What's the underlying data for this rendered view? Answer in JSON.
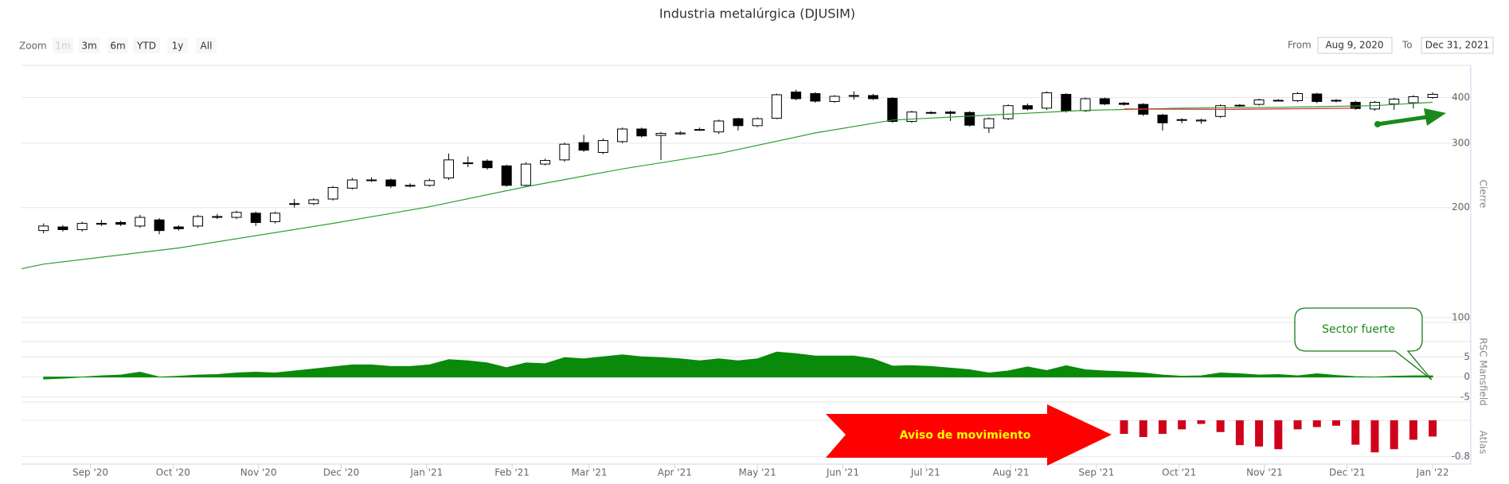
{
  "ui": {
    "zoom_label": "Zoom",
    "buttons": [
      "1m",
      "3m",
      "6m",
      "YTD",
      "1y",
      "All"
    ],
    "from_label": "From",
    "from": "Aug 9, 2020",
    "to_label": "To",
    "to": "Dec 31, 2021"
  },
  "chart_data": {
    "type": "candlestick",
    "title": "Industria metalúrgica (DJUSIM)",
    "y_label": "Cierre",
    "log_scale": true,
    "grid": true,
    "up_color": "#ffffff",
    "down_color": "#000000",
    "x": [
      "2020-08-15",
      "2020-08-22",
      "2020-08-29",
      "2020-09-05",
      "2020-09-12",
      "2020-09-19",
      "2020-09-26",
      "2020-10-03",
      "2020-10-10",
      "2020-10-17",
      "2020-10-24",
      "2020-10-31",
      "2020-11-07",
      "2020-11-14",
      "2020-11-21",
      "2020-11-28",
      "2020-12-05",
      "2020-12-12",
      "2020-12-19",
      "2020-12-26",
      "2021-01-02",
      "2021-01-09",
      "2021-01-16",
      "2021-01-23",
      "2021-01-30",
      "2021-02-06",
      "2021-02-13",
      "2021-02-20",
      "2021-02-27",
      "2021-03-06",
      "2021-03-13",
      "2021-03-20",
      "2021-03-27",
      "2021-04-03",
      "2021-04-10",
      "2021-04-17",
      "2021-04-24",
      "2021-05-01",
      "2021-05-08",
      "2021-05-15",
      "2021-05-22",
      "2021-05-29",
      "2021-06-05",
      "2021-06-12",
      "2021-06-19",
      "2021-06-26",
      "2021-07-03",
      "2021-07-10",
      "2021-07-17",
      "2021-07-24",
      "2021-07-31",
      "2021-08-07",
      "2021-08-14",
      "2021-08-21",
      "2021-08-28",
      "2021-09-04",
      "2021-09-11",
      "2021-09-18",
      "2021-09-25",
      "2021-10-02",
      "2021-10-09",
      "2021-10-16",
      "2021-10-23",
      "2021-10-30",
      "2021-11-06",
      "2021-11-13",
      "2021-11-20",
      "2021-11-27",
      "2021-12-04",
      "2021-12-11",
      "2021-12-18",
      "2021-12-25",
      "2022-01-01"
    ],
    "open": [
      173,
      177,
      174,
      180,
      182,
      178,
      185,
      177,
      178,
      188,
      188,
      193,
      183,
      204,
      205,
      211,
      226,
      237,
      238,
      230,
      230,
      241,
      264,
      268,
      260,
      230,
      263,
      270,
      301,
      283,
      303,
      328,
      315,
      318,
      326,
      322,
      350,
      335,
      351,
      414,
      410,
      390,
      404,
      405,
      398,
      344,
      363,
      365,
      364,
      330,
      350,
      380,
      374,
      408,
      368,
      397,
      386,
      383,
      358,
      347,
      345,
      355,
      380,
      383,
      392,
      392,
      409,
      392,
      388,
      372,
      384,
      387,
      400
    ],
    "high": [
      181,
      179,
      183,
      185,
      184,
      191,
      187,
      179,
      191,
      192,
      196,
      195,
      195,
      211,
      212,
      229,
      241,
      242,
      240,
      233,
      240,
      281,
      276,
      271,
      262,
      266,
      272,
      301,
      316,
      309,
      331,
      331,
      322,
      324,
      331,
      348,
      352,
      353,
      410,
      420,
      414,
      406,
      416,
      409,
      401,
      368,
      367,
      368,
      367,
      353,
      383,
      385,
      416,
      411,
      400,
      400,
      389,
      386,
      361,
      351,
      350,
      383,
      384,
      397,
      396,
      414,
      412,
      396,
      392,
      391,
      399,
      406,
      413
    ],
    "low": [
      170,
      172,
      172,
      178,
      178,
      176,
      169,
      173,
      176,
      186,
      186,
      178,
      181,
      200,
      203,
      209,
      224,
      235,
      226,
      227,
      228,
      238,
      258,
      254,
      228,
      228,
      261,
      267,
      284,
      280,
      300,
      311,
      270,
      316,
      324,
      318,
      325,
      332,
      349,
      393,
      387,
      387,
      395,
      394,
      341,
      341,
      360,
      345,
      333,
      320,
      347,
      369,
      370,
      364,
      365,
      381,
      380,
      356,
      325,
      340,
      339,
      352,
      377,
      380,
      390,
      389,
      386,
      388,
      370,
      368,
      370,
      373,
      397
    ],
    "close": [
      178,
      174,
      181,
      181,
      180,
      188,
      173,
      175,
      189,
      189,
      194,
      182,
      193,
      205,
      210,
      227,
      238,
      238,
      229,
      229,
      237,
      270,
      265,
      257,
      230,
      263,
      269,
      298,
      287,
      305,
      328,
      314,
      319,
      320,
      327,
      345,
      335,
      350,
      407,
      397,
      391,
      403,
      405,
      397,
      344,
      365,
      364,
      362,
      336,
      350,
      380,
      372,
      412,
      368,
      397,
      384,
      383,
      360,
      341,
      348,
      347,
      380,
      381,
      394,
      393,
      410,
      390,
      393,
      373,
      388,
      396,
      402,
      408
    ],
    "xlim": [
      "2020-08-07",
      "2022-01-05"
    ],
    "xticks": [
      {
        "value": "2020-09-01",
        "label": "Sep '20"
      },
      {
        "value": "2020-10-01",
        "label": "Oct '20"
      },
      {
        "value": "2020-11-01",
        "label": "Nov '20"
      },
      {
        "value": "2020-12-01",
        "label": "Dec '20"
      },
      {
        "value": "2021-01-01",
        "label": "Jan '21"
      },
      {
        "value": "2021-02-01",
        "label": "Feb '21"
      },
      {
        "value": "2021-03-01",
        "label": "Mar '21"
      },
      {
        "value": "2021-04-01",
        "label": "Apr '21"
      },
      {
        "value": "2021-05-01",
        "label": "May '21"
      },
      {
        "value": "2021-06-01",
        "label": "Jun '21"
      },
      {
        "value": "2021-07-01",
        "label": "Jul '21"
      },
      {
        "value": "2021-08-01",
        "label": "Aug '21"
      },
      {
        "value": "2021-09-01",
        "label": "Sep '21"
      },
      {
        "value": "2021-10-01",
        "label": "Oct '21"
      },
      {
        "value": "2021-11-01",
        "label": "Nov '21"
      },
      {
        "value": "2021-12-01",
        "label": "Dec '21"
      },
      {
        "value": "2022-01-01",
        "label": "Jan '22"
      }
    ],
    "ylim": [
      97,
      490
    ],
    "yticks": [
      100,
      200,
      300,
      400
    ],
    "overlays": [
      {
        "type": "line",
        "color": "#2e9e2e",
        "x": [
          "2020-08-07",
          "2020-08-15",
          "2020-10-03",
          "2020-11-28",
          "2021-01-02",
          "2021-02-06",
          "2021-03-13",
          "2021-04-17",
          "2021-05-22",
          "2021-06-19",
          "2021-07-24",
          "2021-08-28",
          "2021-10-02",
          "2021-11-06",
          "2021-12-11",
          "2022-01-01"
        ],
        "values": [
          136,
          140,
          155,
          181,
          201,
          228,
          255,
          281,
          320,
          347,
          358,
          369,
          374,
          376,
          380,
          388
        ]
      },
      {
        "type": "line",
        "color": "#e03030",
        "x": [
          "2021-09-11",
          "2021-10-16",
          "2021-12-04"
        ],
        "values": [
          372,
          371,
          374
        ]
      }
    ],
    "panels": [
      {
        "type": "area",
        "y_label": "RSC Mansfield",
        "color": "#0a8a0a",
        "ylim": [
          -6.2,
          8.8
        ],
        "yticks": [
          -5,
          0,
          5
        ],
        "values": [
          -0.5,
          -0.3,
          0,
          0.3,
          0.5,
          1.2,
          0,
          0.2,
          0.5,
          0.6,
          1,
          1.2,
          1,
          1.5,
          2,
          2.5,
          3,
          3,
          2.6,
          2.6,
          3,
          4.3,
          4,
          3.5,
          2.3,
          3.5,
          3.3,
          4.8,
          4.5,
          5,
          5.5,
          5,
          4.8,
          4.5,
          4,
          4.5,
          4,
          4.5,
          6.2,
          5.8,
          5.2,
          5.2,
          5.2,
          4.5,
          2.7,
          2.8,
          2.6,
          2.2,
          1.8,
          1,
          1.5,
          2.5,
          1.6,
          2.8,
          1.8,
          1.5,
          1.3,
          1,
          0.5,
          0.2,
          0.3,
          1,
          0.8,
          0.5,
          0.6,
          0.3,
          0.8,
          0.4,
          0.1,
          0,
          0.2,
          0.3,
          0.3
        ]
      },
      {
        "type": "bar",
        "y_label": "Atlas",
        "color": "#d0021b",
        "ylim": [
          -0.97,
          0
        ],
        "yticks": [
          -0.8
        ],
        "x": [
          "2021-09-11",
          "2021-09-18",
          "2021-09-25",
          "2021-10-02",
          "2021-10-09",
          "2021-10-16",
          "2021-10-23",
          "2021-10-30",
          "2021-11-06",
          "2021-11-13",
          "2021-11-20",
          "2021-11-27",
          "2021-12-04",
          "2021-12-11",
          "2021-12-18",
          "2021-12-25",
          "2022-01-01"
        ],
        "values": [
          -0.3,
          -0.37,
          -0.3,
          -0.2,
          -0.08,
          -0.26,
          -0.55,
          -0.58,
          -0.64,
          -0.2,
          -0.15,
          -0.12,
          -0.54,
          -0.71,
          -0.64,
          -0.43,
          -0.36
        ]
      }
    ],
    "annotations": [
      {
        "text": "Sector fuerte",
        "color": "#1a8a1a"
      },
      {
        "text": "Aviso de movimiento",
        "color": "#ffff00"
      }
    ]
  }
}
